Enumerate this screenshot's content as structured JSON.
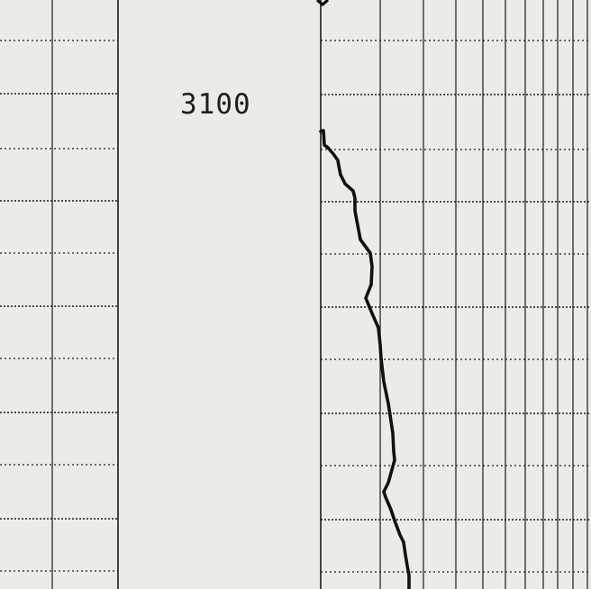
{
  "log": {
    "depth_label": "3100",
    "paper_color": "#ecece6",
    "line_color": "#1a1a1a",
    "curve_color": "#111111",
    "left_track_scale": "linear",
    "right_track_scale": "logarithmic",
    "curve": [
      [
        0,
        0.0
      ],
      [
        3,
        -1.0
      ],
      [
        4,
        15.0
      ],
      [
        8,
        18.0
      ],
      [
        14,
        25.0
      ],
      [
        19,
        32.0
      ],
      [
        20,
        38.0
      ],
      [
        22,
        48.0
      ],
      [
        27,
        58.0
      ],
      [
        36,
        66.0
      ],
      [
        38,
        74.0
      ],
      [
        38,
        88.0
      ],
      [
        41,
        104.0
      ],
      [
        44,
        120.0
      ],
      [
        55,
        135.0
      ],
      [
        57,
        150.0
      ],
      [
        56,
        170.0
      ],
      [
        50,
        185.0
      ],
      [
        57,
        202.0
      ],
      [
        64,
        218.0
      ],
      [
        66,
        237.0
      ],
      [
        67,
        252.0
      ],
      [
        70,
        278.0
      ],
      [
        75,
        302.0
      ],
      [
        77,
        315.0
      ],
      [
        80,
        335.0
      ],
      [
        81,
        355.0
      ],
      [
        82,
        365.0
      ],
      [
        80,
        372.0
      ],
      [
        75,
        390.0
      ],
      [
        70,
        400.0
      ],
      [
        72,
        406.0
      ],
      [
        78,
        420.0
      ],
      [
        82,
        432.0
      ],
      [
        88,
        448.0
      ],
      [
        92,
        456.0
      ],
      [
        94,
        470.0
      ],
      [
        96,
        482.0
      ],
      [
        98,
        493.0
      ],
      [
        98,
        508.0
      ]
    ]
  }
}
